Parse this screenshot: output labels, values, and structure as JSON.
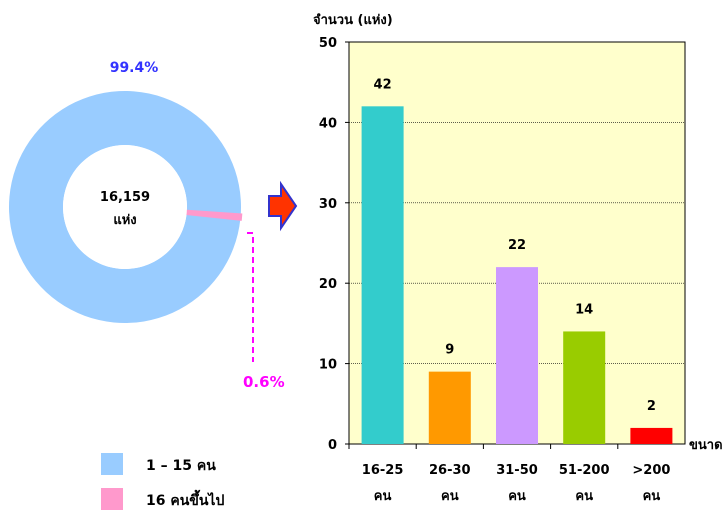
{
  "chart_data": [
    {
      "type": "pie",
      "style": "donut",
      "center_label_line1": "16,159",
      "center_label_line2": "แห่ง",
      "slices": [
        {
          "label": "1 – 15 คน",
          "percent": 99.4,
          "percent_label": "99.4%",
          "color": "#99ccff",
          "label_color": "#3333ff"
        },
        {
          "label": "16 คนขึ้นไป",
          "percent": 0.6,
          "percent_label": "0.6%",
          "color": "#ff99cc",
          "label_color": "#ff00ff"
        }
      ],
      "legend_placement": "bottom-left"
    },
    {
      "type": "bar",
      "ylabel": "จำนวน (แห่ง)",
      "xlabel": "ขนาด",
      "ylim": [
        0,
        50
      ],
      "yticks": [
        0,
        10,
        20,
        30,
        40,
        50
      ],
      "grid": true,
      "plot_background": "#ffffcc",
      "categories": [
        {
          "line1": "16-25",
          "line2": "คน"
        },
        {
          "line1": "26-30",
          "line2": "คน"
        },
        {
          "line1": "31-50",
          "line2": "คน"
        },
        {
          "line1": "51-200",
          "line2": "คน"
        },
        {
          "line1": ">200",
          "line2": "คน"
        }
      ],
      "values": [
        42,
        9,
        22,
        14,
        2
      ],
      "value_labels": [
        "42",
        "9",
        "22",
        "14",
        "2"
      ],
      "colors": [
        "#33cccc",
        "#ff9900",
        "#cc99ff",
        "#99cc00",
        "#ff0000"
      ]
    }
  ],
  "arrow": {
    "fill": "#ff3300",
    "stroke": "#3333cc"
  }
}
